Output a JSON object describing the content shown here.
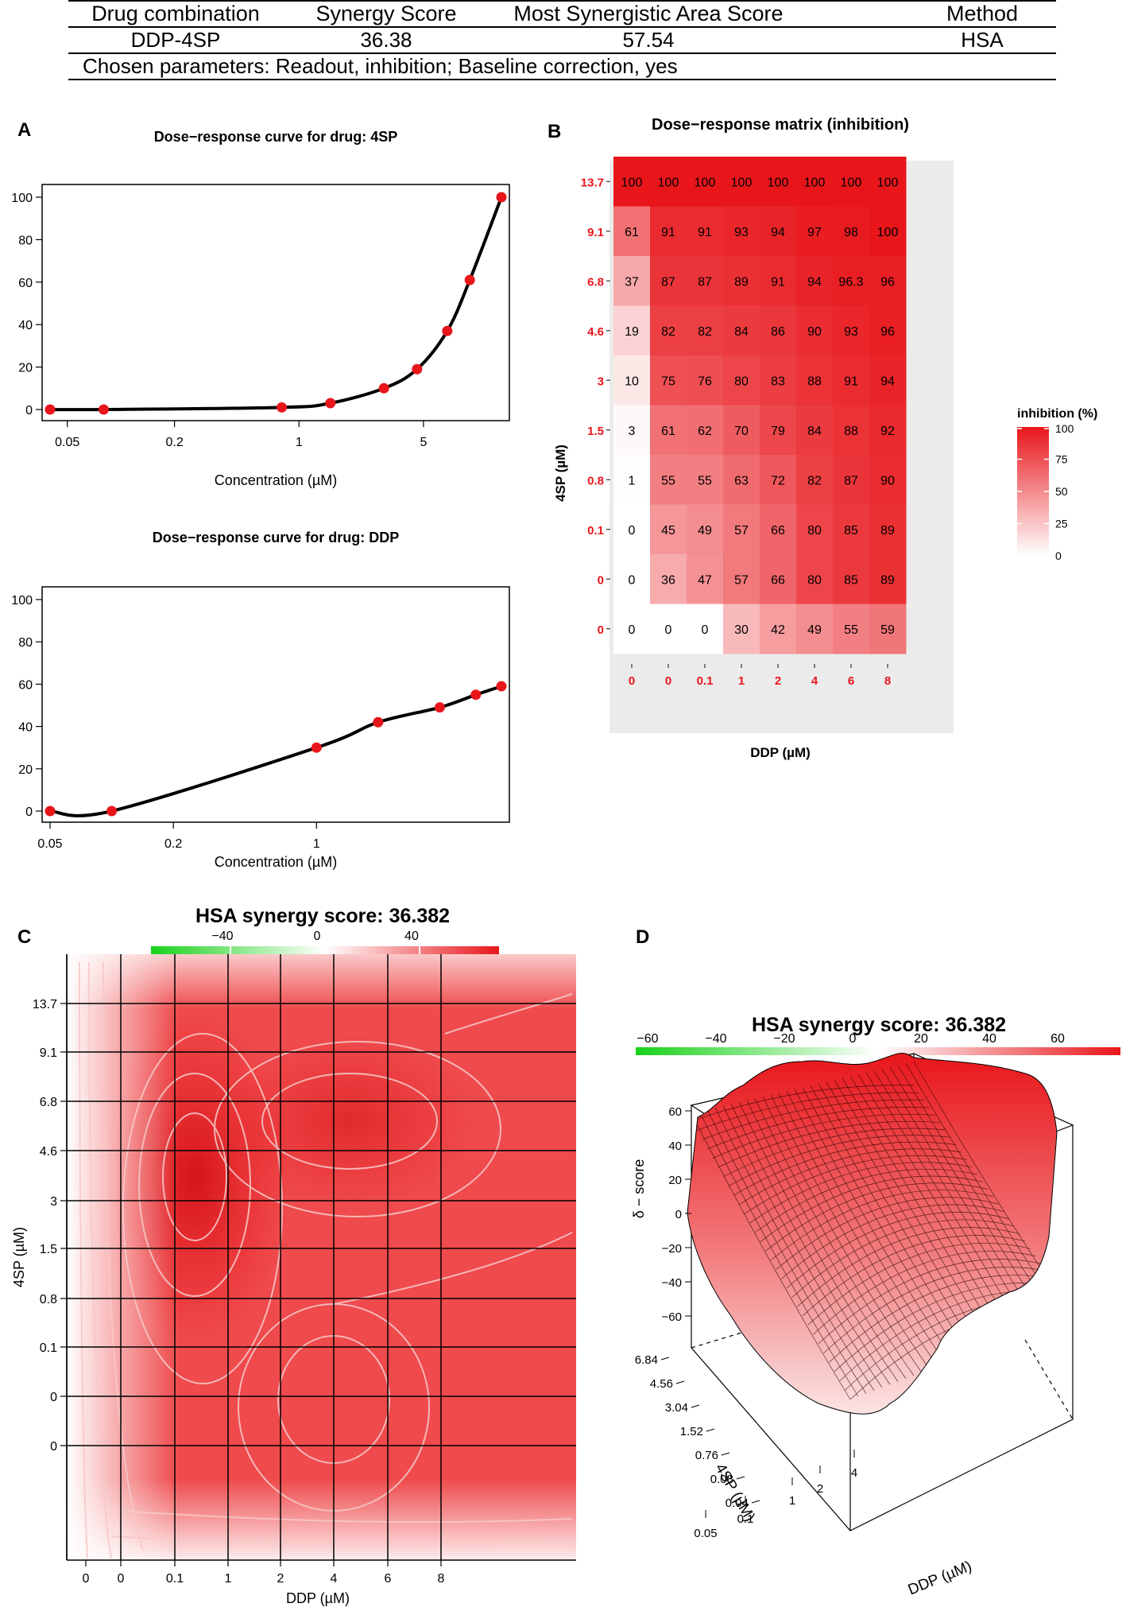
{
  "summary_table": {
    "headers": [
      "Drug combination",
      "Synergy Score",
      "Most Synergistic Area Score",
      "Method"
    ],
    "row": [
      "DDP-4SP",
      "36.38",
      "57.54",
      "HSA"
    ],
    "note": "Chosen parameters: Readout, inhibition; Baseline correction, yes"
  },
  "panel_labels": {
    "a": "A",
    "b": "B",
    "c": "C",
    "d": "D"
  },
  "colors": {
    "marker": "#e8161b",
    "curve": "#000000",
    "heat_high": "#e8161b",
    "heat_low": "#ffffff",
    "green": "#1ad11a",
    "axis_red": "#e8161b"
  },
  "chart_data": [
    {
      "id": "curve_4sp",
      "type": "line",
      "title": "Dose−response curve for drug: 4SP",
      "xlabel": "Concentration (µM)",
      "ylabel": "",
      "x_scale": "log",
      "xlim": [
        0.04,
        13.7
      ],
      "ylim": [
        0,
        100
      ],
      "x_ticks": [
        0.05,
        0.2,
        1,
        5
      ],
      "x_tick_labels": [
        "0.05",
        "0.2",
        "1",
        "5"
      ],
      "y_ticks": [
        0,
        20,
        40,
        60,
        80,
        100
      ],
      "points": {
        "x": [
          0.04,
          0.08,
          0.8,
          1.5,
          3,
          4.6,
          6.8,
          9.1,
          13.7
        ],
        "y": [
          0,
          0,
          1,
          3,
          10,
          19,
          37,
          61,
          100
        ]
      }
    },
    {
      "id": "curve_ddp",
      "type": "line",
      "title": "Dose−response curve for drug: DDP",
      "xlabel": "Concentration (µM)",
      "ylabel": "",
      "x_scale": "log",
      "xlim": [
        0.05,
        8
      ],
      "ylim": [
        0,
        100
      ],
      "x_ticks": [
        0.05,
        0.2,
        1
      ],
      "x_tick_labels": [
        "0.05",
        "0.2",
        "1"
      ],
      "y_ticks": [
        0,
        20,
        40,
        60,
        80,
        100
      ],
      "points": {
        "x": [
          0.05,
          0.1,
          1,
          2,
          4,
          6,
          8
        ],
        "y": [
          0,
          0,
          30,
          42,
          49,
          55,
          59
        ]
      }
    },
    {
      "id": "matrix",
      "type": "heatmap",
      "title": "Dose−response matrix (inhibition)",
      "xlabel": "DDP (µM)",
      "ylabel": "4SP (µM)",
      "x_labels": [
        "0",
        "0",
        "0.1",
        "1",
        "2",
        "4",
        "6",
        "8"
      ],
      "y_labels_top_to_bottom": [
        "13.7",
        "9.1",
        "6.8",
        "4.6",
        "3",
        "1.5",
        "0.8",
        "0.1",
        "0",
        "0"
      ],
      "values_top_to_bottom": [
        [
          "100",
          "100",
          "100",
          "100",
          "100",
          "100",
          "100",
          "100"
        ],
        [
          "61",
          "91",
          "91",
          "93",
          "94",
          "97",
          "98",
          "100"
        ],
        [
          "37",
          "87",
          "87",
          "89",
          "91",
          "94",
          "96.3",
          "96"
        ],
        [
          "19",
          "82",
          "82",
          "84",
          "86",
          "90",
          "93",
          "96"
        ],
        [
          "10",
          "75",
          "76",
          "80",
          "83",
          "88",
          "91",
          "94"
        ],
        [
          "3",
          "61",
          "62",
          "70",
          "79",
          "84",
          "88",
          "92"
        ],
        [
          "1",
          "55",
          "55",
          "63",
          "72",
          "82",
          "87",
          "90"
        ],
        [
          "0",
          "45",
          "49",
          "57",
          "66",
          "80",
          "85",
          "89"
        ],
        [
          "0",
          "36",
          "47",
          "57",
          "66",
          "80",
          "85",
          "89"
        ],
        [
          "0",
          "0",
          "0",
          "30",
          "42",
          "49",
          "55",
          "59"
        ]
      ],
      "legend": {
        "title": "inhibition (%)",
        "ticks": [
          "0",
          "25",
          "50",
          "75",
          "100"
        ],
        "range": [
          0,
          100
        ]
      }
    },
    {
      "id": "synergy_2d",
      "type": "heatmap",
      "title": "HSA synergy score: 36.382",
      "xlabel": "DDP (µM)",
      "ylabel": "4SP (µM)",
      "x_labels": [
        "0",
        "0",
        "0.1",
        "1",
        "2",
        "4",
        "6",
        "8"
      ],
      "y_labels_top_to_bottom": [
        "13.7",
        "9.1",
        "6.8",
        "4.6",
        "3",
        "1.5",
        "0.8",
        "0.1",
        "0",
        "0"
      ],
      "colorbar_ticks": [
        "−40",
        "0",
        "40"
      ],
      "colorbar_range": [
        -60,
        60
      ]
    },
    {
      "id": "synergy_3d",
      "type": "surface",
      "title": "HSA synergy score: 36.382",
      "zlabel": "δ − score",
      "xlabel": "DDP (µM)",
      "ylabel": "4SP (µM)",
      "x_tick_labels": [
        "0.05",
        "0.1",
        "1",
        "2",
        "4"
      ],
      "y_tick_labels": [
        "6.84",
        "4.56",
        "3.04",
        "1.52",
        "0.76",
        "0.08",
        "0.04"
      ],
      "z_tick_labels": [
        "60",
        "40",
        "20",
        "0",
        "−20",
        "−40",
        "−60"
      ],
      "colorbar_ticks": [
        "−60",
        "−40",
        "−20",
        "0",
        "20",
        "40",
        "60"
      ],
      "colorbar_range": [
        -60,
        60
      ]
    }
  ]
}
